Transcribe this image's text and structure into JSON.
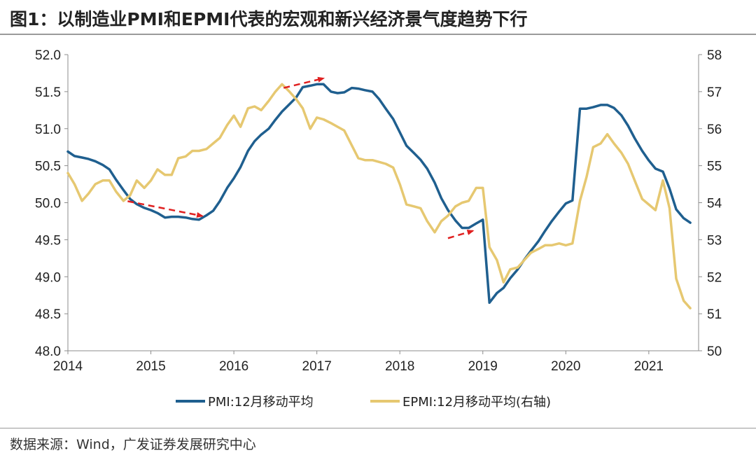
{
  "title": "图1：以制造业PMI和EPMI代表的宏观和新兴经济景气度趋势下行",
  "source": "数据来源：Wind，广发证券发展研究中心",
  "chart_data": {
    "type": "line",
    "x_range": [
      2014.0,
      2021.6
    ],
    "x_ticks": [
      2014,
      2015,
      2016,
      2017,
      2018,
      2019,
      2020,
      2021
    ],
    "x_tick_labels": [
      "2014",
      "2015",
      "2016",
      "2017",
      "2018",
      "2019",
      "2020",
      "2021"
    ],
    "y_left": {
      "range": [
        48.0,
        52.0
      ],
      "ticks": [
        48.0,
        48.5,
        49.0,
        49.5,
        50.0,
        50.5,
        51.0,
        51.5,
        52.0
      ],
      "tick_labels": [
        "48.0",
        "48.5",
        "49.0",
        "49.5",
        "50.0",
        "50.5",
        "51.0",
        "51.5",
        "52.0"
      ]
    },
    "y_right": {
      "range": [
        50,
        58
      ],
      "ticks": [
        50,
        51,
        52,
        53,
        54,
        55,
        56,
        57,
        58
      ],
      "tick_labels": [
        "50",
        "51",
        "52",
        "53",
        "54",
        "55",
        "56",
        "57",
        "58"
      ]
    },
    "series": [
      {
        "name": "PMI:12月移动平均",
        "axis": "left",
        "color": "#1f5f8f",
        "x": [
          2014.0,
          2014.08,
          2014.17,
          2014.25,
          2014.33,
          2014.42,
          2014.5,
          2014.58,
          2014.67,
          2014.75,
          2014.83,
          2014.92,
          2015.0,
          2015.08,
          2015.17,
          2015.25,
          2015.33,
          2015.42,
          2015.5,
          2015.58,
          2015.67,
          2015.75,
          2015.83,
          2015.92,
          2016.0,
          2016.08,
          2016.17,
          2016.25,
          2016.33,
          2016.42,
          2016.5,
          2016.58,
          2016.67,
          2016.75,
          2016.83,
          2016.92,
          2017.0,
          2017.08,
          2017.17,
          2017.25,
          2017.33,
          2017.42,
          2017.5,
          2017.58,
          2017.67,
          2017.75,
          2017.83,
          2017.92,
          2018.0,
          2018.08,
          2018.17,
          2018.25,
          2018.33,
          2018.42,
          2018.5,
          2018.58,
          2018.67,
          2018.75,
          2018.83,
          2018.92,
          2019.0,
          2019.08,
          2019.17,
          2019.25,
          2019.33,
          2019.42,
          2019.5,
          2019.58,
          2019.67,
          2019.75,
          2019.83,
          2019.92,
          2020.0,
          2020.08,
          2020.17,
          2020.25,
          2020.33,
          2020.42,
          2020.5,
          2020.58,
          2020.67,
          2020.75,
          2020.83,
          2020.92,
          2021.0,
          2021.08,
          2021.17,
          2021.25,
          2021.33,
          2021.42,
          2021.5
        ],
        "values": [
          50.69,
          50.63,
          50.61,
          50.59,
          50.56,
          50.51,
          50.45,
          50.31,
          50.17,
          50.05,
          49.98,
          49.93,
          49.9,
          49.86,
          49.8,
          49.81,
          49.81,
          49.8,
          49.78,
          49.77,
          49.83,
          49.89,
          50.02,
          50.2,
          50.33,
          50.48,
          50.7,
          50.83,
          50.92,
          51.0,
          51.12,
          51.23,
          51.33,
          51.42,
          51.56,
          51.58,
          51.6,
          51.6,
          51.5,
          51.48,
          51.49,
          51.55,
          51.54,
          51.52,
          51.5,
          51.4,
          51.27,
          51.13,
          50.95,
          50.77,
          50.67,
          50.58,
          50.46,
          50.27,
          50.06,
          49.9,
          49.76,
          49.66,
          49.66,
          49.72,
          49.77,
          48.65,
          48.78,
          48.85,
          48.98,
          49.1,
          49.23,
          49.35,
          49.48,
          49.62,
          49.75,
          49.88,
          49.99,
          50.03,
          51.27,
          51.27,
          51.29,
          51.32,
          51.32,
          51.28,
          51.18,
          51.04,
          50.87,
          50.7,
          50.57,
          50.46,
          50.42,
          50.19,
          49.91,
          49.79,
          49.73
        ]
      },
      {
        "name": "EPMI:12月移动平均(右轴)",
        "axis": "right",
        "color": "#e6c871",
        "x": [
          2014.0,
          2014.08,
          2014.17,
          2014.25,
          2014.33,
          2014.42,
          2014.5,
          2014.58,
          2014.67,
          2014.75,
          2014.83,
          2014.92,
          2015.0,
          2015.08,
          2015.17,
          2015.25,
          2015.33,
          2015.42,
          2015.5,
          2015.58,
          2015.67,
          2015.75,
          2015.83,
          2015.92,
          2016.0,
          2016.08,
          2016.17,
          2016.25,
          2016.33,
          2016.42,
          2016.5,
          2016.58,
          2016.67,
          2016.75,
          2016.83,
          2016.92,
          2017.0,
          2017.08,
          2017.17,
          2017.25,
          2017.33,
          2017.42,
          2017.5,
          2017.58,
          2017.67,
          2017.75,
          2017.83,
          2017.92,
          2018.0,
          2018.08,
          2018.17,
          2018.25,
          2018.33,
          2018.42,
          2018.5,
          2018.58,
          2018.67,
          2018.75,
          2018.83,
          2018.92,
          2019.0,
          2019.08,
          2019.17,
          2019.25,
          2019.33,
          2019.42,
          2019.5,
          2019.58,
          2019.67,
          2019.75,
          2019.83,
          2019.92,
          2020.0,
          2020.08,
          2020.17,
          2020.25,
          2020.33,
          2020.42,
          2020.5,
          2020.58,
          2020.67,
          2020.75,
          2020.83,
          2020.92,
          2021.0,
          2021.08,
          2021.17,
          2021.25,
          2021.33,
          2021.42,
          2021.5
        ],
        "values": [
          54.8,
          54.5,
          54.05,
          54.25,
          54.5,
          54.6,
          54.6,
          54.3,
          54.05,
          54.2,
          54.6,
          54.4,
          54.6,
          54.9,
          54.75,
          54.75,
          55.2,
          55.25,
          55.4,
          55.4,
          55.45,
          55.6,
          55.75,
          56.1,
          56.35,
          56.05,
          56.55,
          56.6,
          56.5,
          56.75,
          57.0,
          57.2,
          57.0,
          56.8,
          56.55,
          56.0,
          56.3,
          56.25,
          56.15,
          56.05,
          55.95,
          55.55,
          55.2,
          55.15,
          55.15,
          55.1,
          55.05,
          54.95,
          54.5,
          53.95,
          53.9,
          53.85,
          53.5,
          53.2,
          53.5,
          53.65,
          53.9,
          54.0,
          54.05,
          54.4,
          54.4,
          52.8,
          52.45,
          51.85,
          52.2,
          52.25,
          52.45,
          52.65,
          52.75,
          52.85,
          52.85,
          52.9,
          52.85,
          52.9,
          54.05,
          54.7,
          55.5,
          55.6,
          55.85,
          55.6,
          55.35,
          55.05,
          54.6,
          54.1,
          53.95,
          53.8,
          54.6,
          53.85,
          51.95,
          51.35,
          51.15
        ]
      }
    ],
    "annotations": [
      {
        "type": "dashed-arrow",
        "color": "#e02020",
        "axis": "left",
        "from": [
          2014.72,
          50.02
        ],
        "to": [
          2015.62,
          49.82
        ]
      },
      {
        "type": "dashed-arrow",
        "color": "#e02020",
        "axis": "left",
        "from": [
          2016.6,
          51.55
        ],
        "to": [
          2017.08,
          51.68
        ]
      },
      {
        "type": "dashed-arrow",
        "color": "#e02020",
        "axis": "left",
        "from": [
          2018.58,
          49.52
        ],
        "to": [
          2018.88,
          49.62
        ]
      }
    ],
    "legend": {
      "position": "bottom"
    }
  }
}
